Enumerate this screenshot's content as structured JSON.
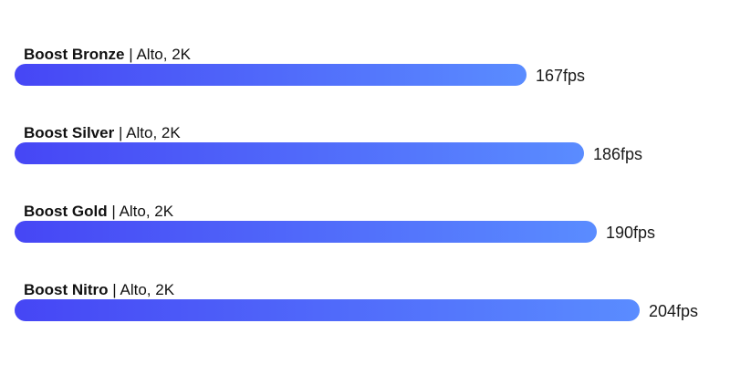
{
  "chart_data": {
    "type": "bar",
    "orientation": "horizontal",
    "categories": [
      "Boost Bronze",
      "Boost Silver",
      "Boost Gold",
      "Boost Nitro"
    ],
    "settings": [
      "Alto, 2K",
      "Alto, 2K",
      "Alto, 2K",
      "Alto, 2K"
    ],
    "separator": "|",
    "values": [
      167,
      186,
      190,
      204
    ],
    "value_labels": [
      "167fps",
      "186fps",
      "190fps",
      "204fps"
    ],
    "unit": "fps",
    "xlim": [
      0,
      210
    ],
    "grid": false,
    "gradient_start": "#4646f5",
    "gradient_end": "#5a8cff"
  }
}
